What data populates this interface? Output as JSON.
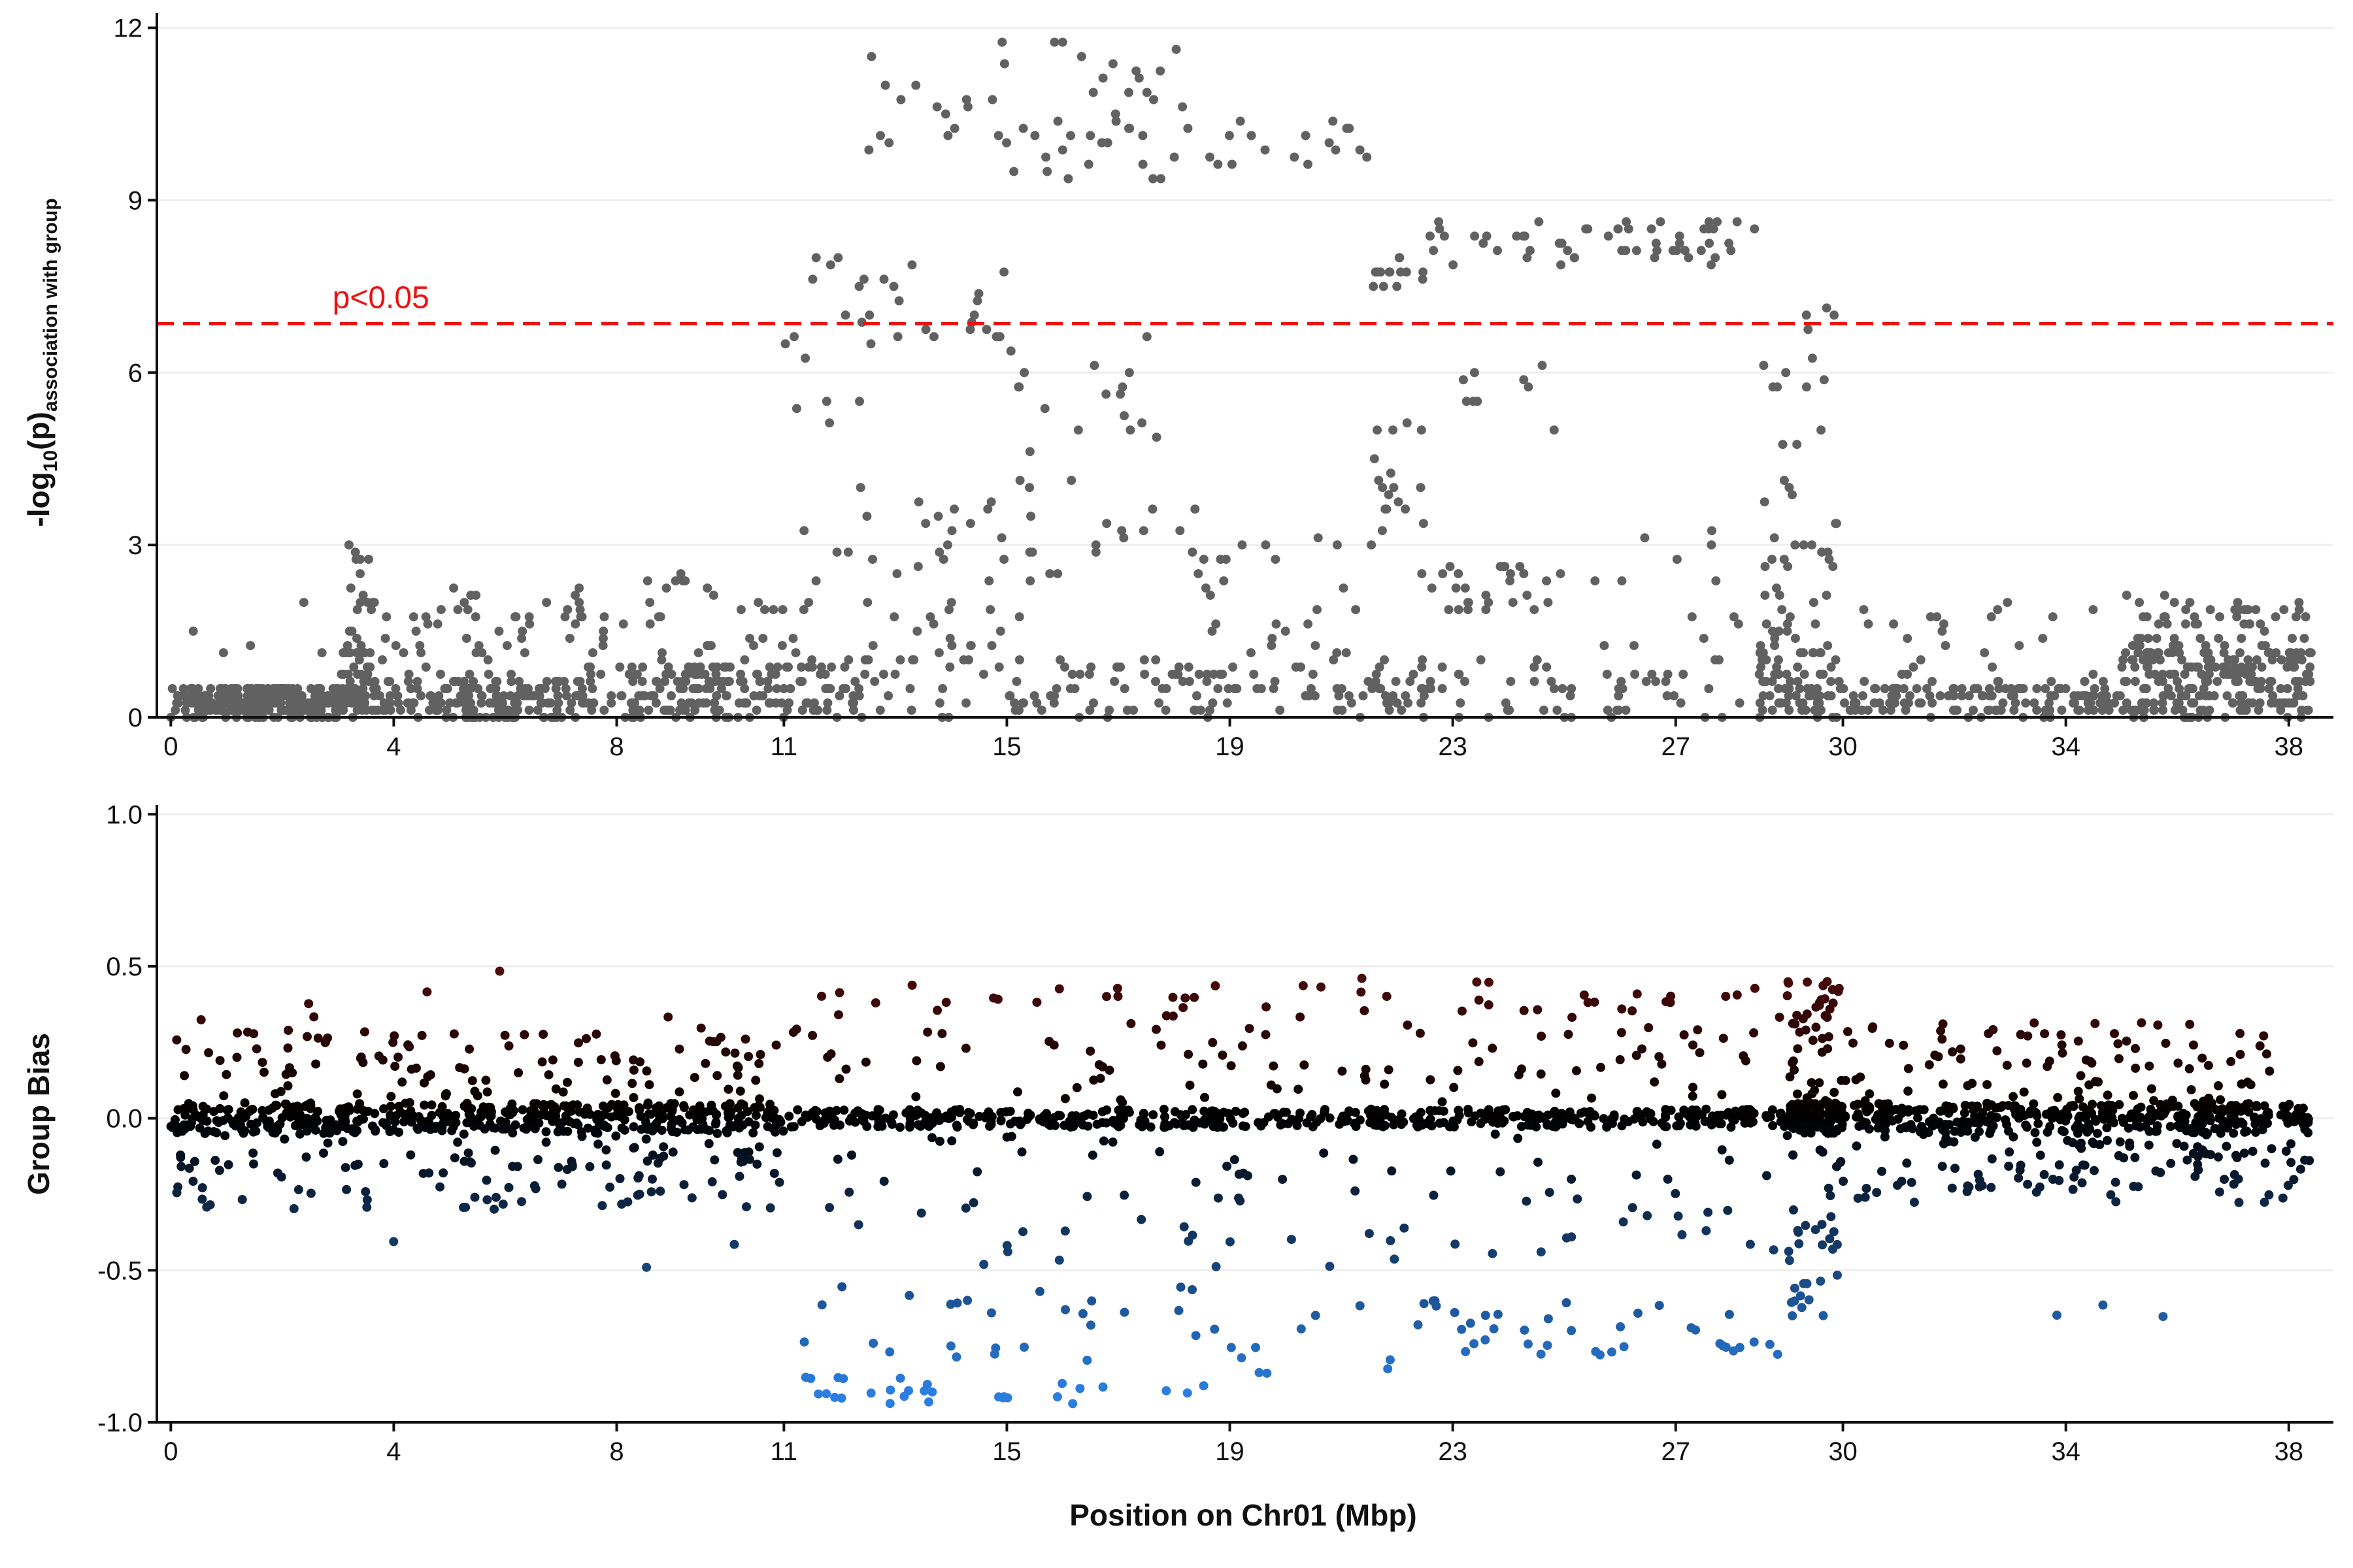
{
  "colors": {
    "top_points": "#616161",
    "threshold": "#ee1111",
    "pos_bias": "#8c1414",
    "neg_bias": "#2b7ee0",
    "neutral": "#000000",
    "grid": "#eeeeee",
    "axis": "#111111"
  },
  "chart_data": [
    {
      "type": "scatter",
      "id": "association",
      "title": "",
      "xlabel": "",
      "ylabel": {
        "main": "-log",
        "sub1": "10",
        "main2": "(p)",
        "sub2": "association with group"
      },
      "xlim": [
        -0.25,
        38.8
      ],
      "ylim": [
        0,
        12.2
      ],
      "x_ticks": [
        0,
        4,
        8,
        11,
        15,
        19,
        23,
        27,
        30,
        34,
        38
      ],
      "y_ticks": [
        0,
        3,
        6,
        9,
        12
      ],
      "threshold": {
        "value": 6.85,
        "label": "p<0.05",
        "label_x": 2.9,
        "style": "dashed"
      },
      "seed": 11,
      "clusters": [
        {
          "x": [
            0.0,
            3.0
          ],
          "n": 260,
          "levels": [
            [
              0.0,
              0.5,
              60
            ],
            [
              0.5,
              2.5,
              1
            ]
          ]
        },
        {
          "x": [
            3.0,
            3.6
          ],
          "n": 70,
          "levels": [
            [
              0.0,
              1.2,
              3
            ],
            [
              1.2,
              3.0,
              1
            ]
          ]
        },
        {
          "x": [
            3.6,
            7.0
          ],
          "n": 200,
          "levels": [
            [
              0.0,
              0.6,
              4
            ],
            [
              0.6,
              2.3,
              1
            ]
          ]
        },
        {
          "x": [
            7.0,
            11.0
          ],
          "n": 210,
          "levels": [
            [
              0.0,
              0.9,
              4
            ],
            [
              0.9,
              2.5,
              1
            ]
          ]
        },
        {
          "x": [
            11.0,
            12.5
          ],
          "n": 70,
          "levels": [
            [
              0.0,
              1.0,
              3
            ],
            [
              1.0,
              4.0,
              1
            ],
            [
              5.0,
              8.2,
              1
            ]
          ]
        },
        {
          "x": [
            12.5,
            15.0
          ],
          "n": 90,
          "levels": [
            [
              0.0,
              1.5,
              3
            ],
            [
              1.5,
              3.8,
              2
            ],
            [
              6.2,
              8.2,
              1
            ],
            [
              9.5,
              11.8,
              1
            ]
          ]
        },
        {
          "x": [
            15.0,
            18.5
          ],
          "n": 130,
          "levels": [
            [
              0.0,
              1.0,
              3
            ],
            [
              1.8,
              3.8,
              1
            ],
            [
              4.0,
              7.0,
              1
            ],
            [
              9.1,
              11.8,
              2
            ]
          ]
        },
        {
          "x": [
            18.5,
            21.5
          ],
          "n": 80,
          "levels": [
            [
              0.0,
              1.2,
              3
            ],
            [
              1.2,
              3.1,
              2
            ],
            [
              9.5,
              10.4,
              1
            ]
          ]
        },
        {
          "x": [
            21.5,
            22.5
          ],
          "n": 60,
          "levels": [
            [
              0.0,
              1.0,
              2
            ],
            [
              2.5,
              5.5,
              2
            ],
            [
              7.5,
              8.0,
              1
            ]
          ]
        },
        {
          "x": [
            22.5,
            25.0
          ],
          "n": 80,
          "levels": [
            [
              0.0,
              1.0,
              2
            ],
            [
              1.8,
              2.7,
              2
            ],
            [
              4.5,
              6.5,
              1
            ],
            [
              7.9,
              8.6,
              2
            ]
          ]
        },
        {
          "x": [
            25.0,
            28.5
          ],
          "n": 80,
          "levels": [
            [
              0.0,
              1.0,
              3
            ],
            [
              1.2,
              3.2,
              1
            ],
            [
              7.9,
              8.6,
              2
            ]
          ]
        },
        {
          "x": [
            28.5,
            30.0
          ],
          "n": 120,
          "levels": [
            [
              0.0,
              1.2,
              4
            ],
            [
              1.2,
              3.5,
              2
            ],
            [
              3.5,
              7.2,
              1
            ]
          ]
        },
        {
          "x": [
            30.0,
            35.0
          ],
          "n": 160,
          "levels": [
            [
              0.0,
              0.6,
              5
            ],
            [
              0.6,
              2.0,
              1
            ]
          ]
        },
        {
          "x": [
            35.0,
            38.4
          ],
          "n": 270,
          "levels": [
            [
              0.0,
              1.2,
              4
            ],
            [
              1.2,
              2.1,
              1
            ]
          ]
        }
      ]
    },
    {
      "type": "scatter",
      "id": "group_bias",
      "title": "",
      "xlabel": "Position on Chr01 (Mbp)",
      "ylabel": "Group Bias",
      "xlim": [
        -0.25,
        38.8
      ],
      "ylim": [
        -1.0,
        1.02
      ],
      "x_ticks": [
        0,
        4,
        8,
        11,
        15,
        19,
        23,
        27,
        30,
        34,
        38
      ],
      "y_ticks": [
        -1.0,
        -0.5,
        0.0,
        0.5,
        1.0
      ],
      "y_tick_labels": [
        "-1.0",
        "-0.5",
        "0.0",
        "0.5",
        "1.0"
      ],
      "color_scale": {
        "negative": "#2b7ee0",
        "zero": "#000000",
        "positive": "#8c1414",
        "scale_max": 0.9
      },
      "seed": 29,
      "clusters": [
        {
          "x": [
            0.0,
            11.0
          ],
          "n": 700,
          "levels": [
            [
              -0.05,
              0.05,
              8
            ],
            [
              0.05,
              0.3,
              2
            ],
            [
              -0.3,
              -0.05,
              2
            ],
            [
              0.3,
              0.55,
              0.2
            ],
            [
              -0.5,
              -0.3,
              0.15
            ]
          ]
        },
        {
          "x": [
            11.0,
            18.5
          ],
          "n": 330,
          "levels": [
            [
              -0.03,
              0.03,
              6
            ],
            [
              0.05,
              0.45,
              1.5
            ],
            [
              -0.5,
              -0.05,
              1
            ],
            [
              -0.8,
              -0.55,
              1
            ],
            [
              -0.95,
              -0.85,
              1
            ]
          ]
        },
        {
          "x": [
            18.5,
            22.0
          ],
          "n": 150,
          "levels": [
            [
              -0.03,
              0.03,
              5
            ],
            [
              0.05,
              0.5,
              1.5
            ],
            [
              -0.5,
              -0.05,
              1
            ],
            [
              -0.88,
              -0.6,
              0.6
            ]
          ]
        },
        {
          "x": [
            22.0,
            29.0
          ],
          "n": 330,
          "levels": [
            [
              -0.03,
              0.03,
              6
            ],
            [
              0.05,
              0.45,
              1.5
            ],
            [
              -0.45,
              -0.05,
              1
            ],
            [
              -0.78,
              -0.6,
              1
            ]
          ]
        },
        {
          "x": [
            29.0,
            30.0
          ],
          "n": 180,
          "levels": [
            [
              -0.05,
              0.05,
              5
            ],
            [
              0.05,
              0.45,
              2
            ],
            [
              -0.5,
              -0.05,
              1.5
            ],
            [
              -0.68,
              -0.5,
              0.6
            ]
          ]
        },
        {
          "x": [
            30.0,
            38.4
          ],
          "n": 560,
          "levels": [
            [
              -0.05,
              0.05,
              8
            ],
            [
              0.05,
              0.32,
              2
            ],
            [
              -0.28,
              -0.05,
              2.5
            ],
            [
              -0.66,
              -0.6,
              0.05
            ]
          ]
        }
      ]
    }
  ]
}
